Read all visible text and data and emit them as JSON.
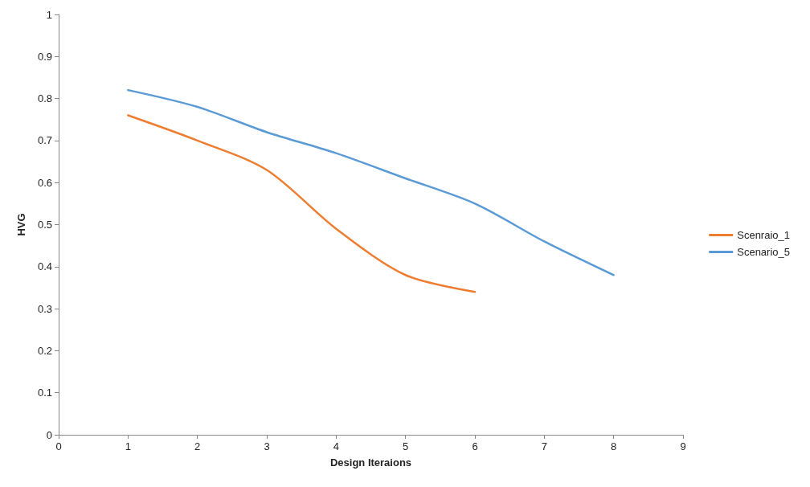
{
  "chart_data": {
    "type": "line",
    "xlabel": "Design Iteraions",
    "ylabel": "HVG",
    "series": [
      {
        "name": "Scenraio_1",
        "color": "#ed7d31",
        "x": [
          1,
          2,
          3,
          4,
          5,
          6
        ],
        "values": [
          0.76,
          0.7,
          0.63,
          0.49,
          0.38,
          0.34
        ]
      },
      {
        "name": "Scenario_5",
        "color": "#5b9bd5",
        "x": [
          1,
          2,
          3,
          4,
          5,
          6,
          7,
          8
        ],
        "values": [
          0.82,
          0.78,
          0.72,
          0.67,
          0.61,
          0.55,
          0.46,
          0.38
        ]
      }
    ],
    "xlim": [
      0,
      9
    ],
    "xticks": [
      0,
      1,
      2,
      3,
      4,
      5,
      6,
      7,
      8,
      9
    ],
    "ylim": [
      0,
      1
    ],
    "yticks": [
      0,
      0.1,
      0.2,
      0.3,
      0.4,
      0.5,
      0.6,
      0.7,
      0.8,
      0.9,
      1
    ],
    "grid": false,
    "legend": "right",
    "marker": "none",
    "line_style": "solid"
  }
}
